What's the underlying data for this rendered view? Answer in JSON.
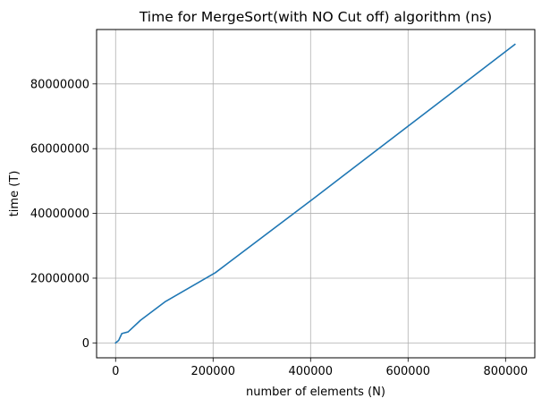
{
  "chart_data": {
    "type": "line",
    "title": "Time for MergeSort(with NO Cut off) algorithm (ns)",
    "xlabel": "number of elements (N)",
    "ylabel": "time (T)",
    "xlim": [
      -39000,
      860000
    ],
    "ylim": [
      -4600000,
      96800000
    ],
    "x_ticks": [
      0,
      200000,
      400000,
      600000,
      800000
    ],
    "x_tick_labels": [
      "0",
      "200000",
      "400000",
      "600000",
      "800000"
    ],
    "y_ticks": [
      0,
      20000000,
      40000000,
      60000000,
      80000000
    ],
    "y_tick_labels": [
      "0",
      "20000000",
      "40000000",
      "60000000",
      "80000000"
    ],
    "grid": true,
    "series": [
      {
        "color": "#1f77b4",
        "x": [
          0,
          6400,
          12800,
          25600,
          51200,
          102400,
          204800,
          409600,
          819200
        ],
        "y": [
          0,
          800000,
          2900000,
          3400000,
          7000000,
          12800000,
          21700000,
          45000000,
          92200000
        ]
      }
    ]
  }
}
